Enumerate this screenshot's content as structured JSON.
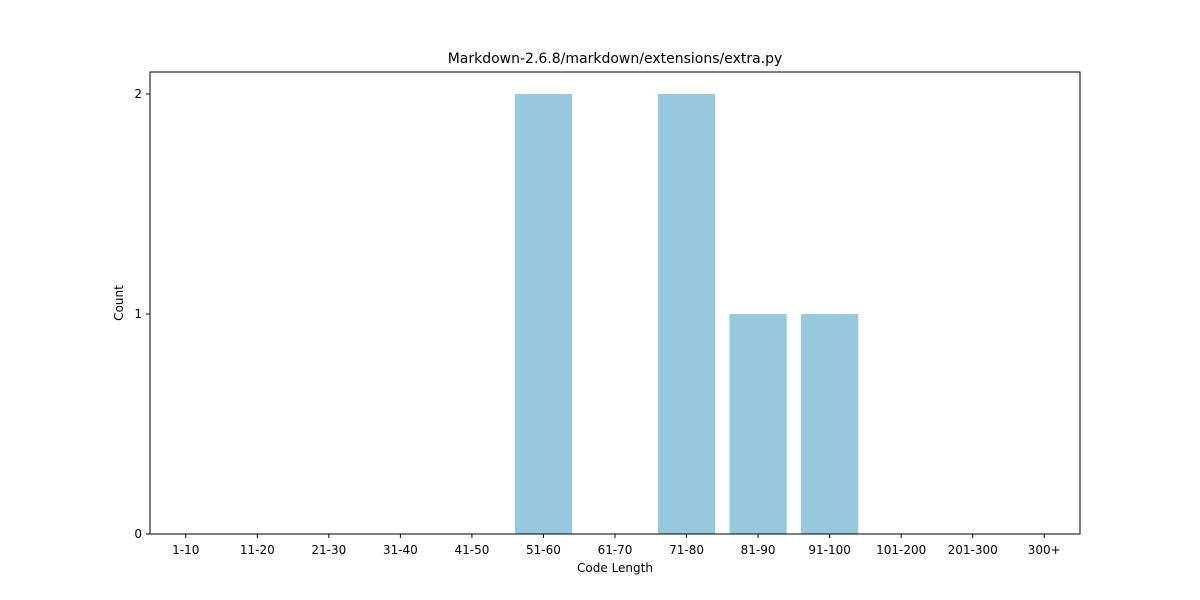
{
  "chart_data": {
    "type": "bar",
    "title": "Markdown-2.6.8/markdown/extensions/extra.py",
    "xlabel": "Code Length",
    "ylabel": "Count",
    "categories": [
      "1-10",
      "11-20",
      "21-30",
      "31-40",
      "41-50",
      "51-60",
      "61-70",
      "71-80",
      "81-90",
      "91-100",
      "101-200",
      "201-300",
      "300+"
    ],
    "values": [
      0,
      0,
      0,
      0,
      0,
      2,
      0,
      2,
      1,
      1,
      0,
      0,
      0
    ],
    "ylim": [
      0,
      2.1
    ],
    "yticks": [
      0,
      1,
      2
    ],
    "grid": false,
    "bar_color": "#96c9dd"
  }
}
